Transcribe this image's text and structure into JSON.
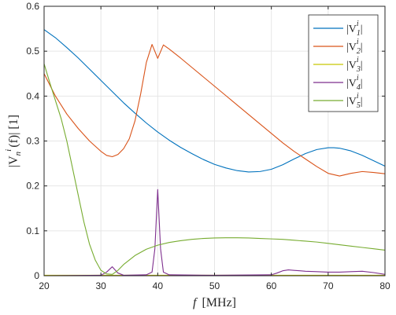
{
  "chart_data": {
    "type": "line",
    "xlabel_symbol": "f",
    "xlabel_unit": "[MHz]",
    "ylabel_main": "|V",
    "ylabel_sub": "n",
    "ylabel_sup": "i",
    "ylabel_rest": "(f)| [1]",
    "xlim": [
      20,
      80
    ],
    "ylim": [
      0,
      0.6
    ],
    "xticks": [
      20,
      30,
      40,
      50,
      60,
      70,
      80
    ],
    "yticks": [
      0,
      0.1,
      0.2,
      0.3,
      0.4,
      0.5,
      0.6
    ],
    "xtick_labels": [
      "20",
      "30",
      "40",
      "50",
      "60",
      "70",
      "80"
    ],
    "ytick_labels": [
      "0",
      "0.1",
      "0.2",
      "0.3",
      "0.4",
      "0.5",
      "0.6"
    ],
    "grid": true,
    "legend_position": "top-right",
    "series": [
      {
        "name": "|V_1^i|",
        "legend_sub": "1",
        "color": "#0072BD",
        "x": [
          20,
          22,
          24,
          26,
          28,
          30,
          32,
          34,
          36,
          38,
          40,
          42,
          44,
          46,
          48,
          50,
          52,
          54,
          56,
          58,
          60,
          62,
          64,
          66,
          68,
          70,
          71,
          72,
          74,
          76,
          78,
          80
        ],
        "y": [
          0.548,
          0.53,
          0.508,
          0.485,
          0.46,
          0.435,
          0.41,
          0.385,
          0.362,
          0.34,
          0.32,
          0.302,
          0.286,
          0.272,
          0.259,
          0.248,
          0.24,
          0.234,
          0.231,
          0.232,
          0.237,
          0.247,
          0.26,
          0.272,
          0.281,
          0.285,
          0.285,
          0.284,
          0.278,
          0.268,
          0.256,
          0.244
        ]
      },
      {
        "name": "|V_2^i|",
        "legend_sub": "2",
        "color": "#D95319",
        "x": [
          20,
          22,
          24,
          26,
          28,
          30,
          31,
          32,
          33,
          34,
          35,
          36,
          37,
          38,
          39,
          40,
          41,
          42,
          44,
          46,
          48,
          50,
          52,
          54,
          56,
          58,
          60,
          62,
          64,
          66,
          68,
          70,
          72,
          74,
          76,
          78,
          80
        ],
        "y": [
          0.45,
          0.4,
          0.36,
          0.328,
          0.3,
          0.277,
          0.268,
          0.265,
          0.27,
          0.283,
          0.305,
          0.345,
          0.405,
          0.475,
          0.515,
          0.484,
          0.514,
          0.505,
          0.485,
          0.464,
          0.443,
          0.422,
          0.401,
          0.38,
          0.359,
          0.338,
          0.317,
          0.296,
          0.277,
          0.26,
          0.243,
          0.228,
          0.222,
          0.228,
          0.232,
          0.23,
          0.227
        ]
      },
      {
        "name": "|V_3^i|",
        "legend_sub": "3",
        "color": "#C8C800",
        "x": [
          20,
          30,
          31,
          32,
          33,
          34,
          40,
          50,
          60,
          70,
          80
        ],
        "y": [
          0.001,
          0.001,
          0.001,
          0.001,
          0.001,
          0.001,
          0.001,
          0.001,
          0.001,
          0.001,
          0.001
        ]
      },
      {
        "name": "|V_4^i|",
        "legend_sub": "4",
        "color": "#7E2F8E",
        "x": [
          20,
          30,
          31,
          32,
          33,
          34,
          38,
          39,
          39.5,
          40,
          40.5,
          41,
          42,
          50,
          60,
          61,
          62,
          63,
          64,
          65,
          66,
          68,
          70,
          72,
          74,
          76,
          78,
          80
        ],
        "y": [
          0,
          0.001,
          0.008,
          0.02,
          0.006,
          0.001,
          0.002,
          0.008,
          0.06,
          0.192,
          0.06,
          0.008,
          0.002,
          0.001,
          0.002,
          0.006,
          0.011,
          0.013,
          0.012,
          0.011,
          0.01,
          0.009,
          0.008,
          0.008,
          0.009,
          0.01,
          0.007,
          0.003
        ]
      },
      {
        "name": "|V_5^i|",
        "legend_sub": "5",
        "color": "#77AC30",
        "x": [
          20,
          21,
          22,
          23,
          24,
          25,
          26,
          27,
          28,
          29,
          30,
          31,
          32,
          33,
          34,
          36,
          38,
          40,
          42,
          44,
          46,
          48,
          50,
          52,
          54,
          56,
          58,
          60,
          62,
          64,
          66,
          68,
          70,
          72,
          74,
          76,
          78,
          80
        ],
        "y": [
          0.472,
          0.43,
          0.39,
          0.35,
          0.3,
          0.24,
          0.18,
          0.12,
          0.07,
          0.035,
          0.012,
          0.004,
          0.003,
          0.012,
          0.025,
          0.045,
          0.059,
          0.068,
          0.074,
          0.078,
          0.081,
          0.083,
          0.084,
          0.0845,
          0.0845,
          0.084,
          0.083,
          0.082,
          0.081,
          0.079,
          0.077,
          0.075,
          0.072,
          0.069,
          0.066,
          0.063,
          0.06,
          0.057
        ]
      }
    ]
  }
}
